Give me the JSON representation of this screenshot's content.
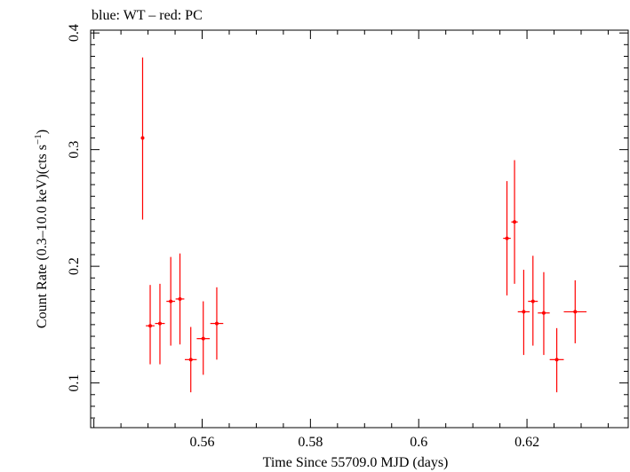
{
  "chart_data": {
    "type": "scatter",
    "title": "blue: WT – red: PC",
    "xlabel": "Time Since 55709.0 MJD (days)",
    "ylabel_main": "Count Rate (0.3–10.0 keV)(cts s",
    "ylabel_sup": "−1",
    "ylabel_close": ")",
    "xlim": [
      0.5394,
      0.6387
    ],
    "ylim": [
      0.0617,
      0.4024
    ],
    "x_ticks": [
      {
        "value": 0.56,
        "label": "0.56"
      },
      {
        "value": 0.58,
        "label": "0.58"
      },
      {
        "value": 0.6,
        "label": "0.6"
      },
      {
        "value": 0.62,
        "label": "0.62"
      }
    ],
    "y_ticks": [
      {
        "value": 0.1,
        "label": "0.1"
      },
      {
        "value": 0.2,
        "label": "0.2"
      },
      {
        "value": 0.3,
        "label": "0.3"
      },
      {
        "value": 0.4,
        "label": "0.4"
      }
    ],
    "grid": false,
    "series": [
      {
        "color": "#ff0000",
        "points": [
          {
            "x": 0.549,
            "xerr": 0.0003,
            "y": 0.31,
            "ylo": 0.24,
            "yhi": 0.379
          },
          {
            "x": 0.5504,
            "xerr": 0.0008,
            "y": 0.149,
            "ylo": 0.116,
            "yhi": 0.184
          },
          {
            "x": 0.5522,
            "xerr": 0.0009,
            "y": 0.151,
            "ylo": 0.116,
            "yhi": 0.185
          },
          {
            "x": 0.5542,
            "xerr": 0.0008,
            "y": 0.17,
            "ylo": 0.132,
            "yhi": 0.208
          },
          {
            "x": 0.5559,
            "xerr": 0.0008,
            "y": 0.172,
            "ylo": 0.133,
            "yhi": 0.211
          },
          {
            "x": 0.5579,
            "xerr": 0.0011,
            "y": 0.12,
            "ylo": 0.092,
            "yhi": 0.148
          },
          {
            "x": 0.5602,
            "xerr": 0.0012,
            "y": 0.138,
            "ylo": 0.107,
            "yhi": 0.17
          },
          {
            "x": 0.5627,
            "xerr": 0.0012,
            "y": 0.151,
            "ylo": 0.12,
            "yhi": 0.182
          },
          {
            "x": 0.6163,
            "xerr": 0.0007,
            "y": 0.224,
            "ylo": 0.175,
            "yhi": 0.273
          },
          {
            "x": 0.6177,
            "xerr": 0.0006,
            "y": 0.238,
            "ylo": 0.185,
            "yhi": 0.291
          },
          {
            "x": 0.6194,
            "xerr": 0.0011,
            "y": 0.161,
            "ylo": 0.124,
            "yhi": 0.197
          },
          {
            "x": 0.6211,
            "xerr": 0.0009,
            "y": 0.17,
            "ylo": 0.132,
            "yhi": 0.209
          },
          {
            "x": 0.6231,
            "xerr": 0.0011,
            "y": 0.16,
            "ylo": 0.124,
            "yhi": 0.195
          },
          {
            "x": 0.6255,
            "xerr": 0.0013,
            "y": 0.12,
            "ylo": 0.092,
            "yhi": 0.147
          },
          {
            "x": 0.6289,
            "xerr": 0.0021,
            "y": 0.161,
            "ylo": 0.134,
            "yhi": 0.188
          }
        ]
      }
    ]
  }
}
